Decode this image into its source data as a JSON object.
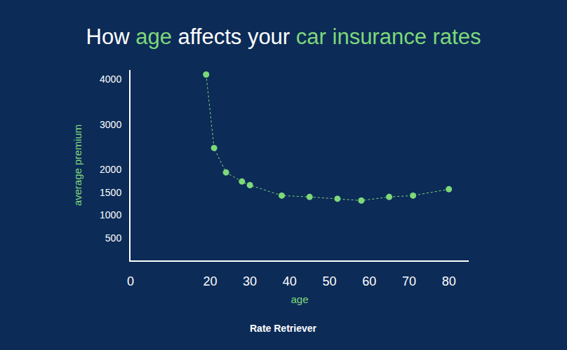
{
  "chart_data": {
    "type": "line",
    "title": "How age affects your car insurance rates",
    "x_label": "age",
    "y_label": "average premium",
    "x": [
      19,
      21,
      24,
      28,
      30,
      38,
      45,
      52,
      58,
      65,
      71,
      80
    ],
    "values": [
      4100,
      2480,
      1940,
      1740,
      1660,
      1430,
      1400,
      1360,
      1320,
      1400,
      1430,
      1570
    ],
    "color": "#7ed87a",
    "marker": "circle",
    "line_style": "dot",
    "xlim": [
      0,
      85
    ],
    "xticks": [
      0,
      20,
      30,
      40,
      50,
      60,
      70,
      80
    ],
    "ylim": [
      0,
      4200
    ],
    "yticks": [
      500,
      1000,
      1500,
      2000,
      3000,
      4000
    ],
    "grid": false,
    "annotations": [
      "Rate Retriever"
    ]
  }
}
